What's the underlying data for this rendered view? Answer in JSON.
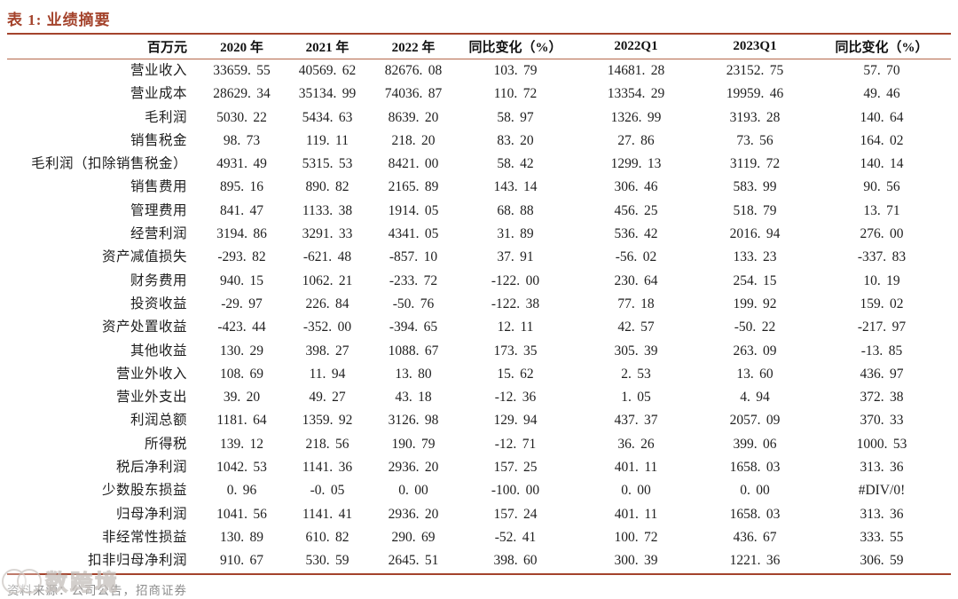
{
  "report": {
    "title": "表 1: 业绩摘要",
    "colors": {
      "accent": "#a4432c",
      "accent_light": "#b5674a",
      "body_text": "#1f1f1f",
      "footer_text": "#8d8d8d",
      "watermark": "#c5bfbb"
    },
    "table": {
      "unit_label": "百万元",
      "columns": [
        "2020 年",
        "2021 年",
        "2022 年",
        "同比变化（%）",
        "2022Q1",
        "2023Q1",
        "同比变化（%）"
      ],
      "rows": [
        {
          "label": "营业收入",
          "values": [
            "33659.55",
            "40569.62",
            "82676.08",
            "103.79",
            "14681.28",
            "23152.75",
            "57.70"
          ]
        },
        {
          "label": "营业成本",
          "values": [
            "28629.34",
            "35134.99",
            "74036.87",
            "110.72",
            "13354.29",
            "19959.46",
            "49.46"
          ]
        },
        {
          "label": "毛利润",
          "values": [
            "5030.22",
            "5434.63",
            "8639.20",
            "58.97",
            "1326.99",
            "3193.28",
            "140.64"
          ]
        },
        {
          "label": "销售税金",
          "values": [
            "98.73",
            "119.11",
            "218.20",
            "83.20",
            "27.86",
            "73.56",
            "164.02"
          ]
        },
        {
          "label": "毛利润（扣除销售税金）",
          "values": [
            "4931.49",
            "5315.53",
            "8421.00",
            "58.42",
            "1299.13",
            "3119.72",
            "140.14"
          ]
        },
        {
          "label": "销售费用",
          "values": [
            "895.16",
            "890.82",
            "2165.89",
            "143.14",
            "306.46",
            "583.99",
            "90.56"
          ]
        },
        {
          "label": "管理费用",
          "values": [
            "841.47",
            "1133.38",
            "1914.05",
            "68.88",
            "456.25",
            "518.79",
            "13.71"
          ]
        },
        {
          "label": "经营利润",
          "values": [
            "3194.86",
            "3291.33",
            "4341.05",
            "31.89",
            "536.42",
            "2016.94",
            "276.00"
          ]
        },
        {
          "label": "资产减值损失",
          "values": [
            "-293.82",
            "-621.48",
            "-857.10",
            "37.91",
            "-56.02",
            "133.23",
            "-337.83"
          ]
        },
        {
          "label": "财务费用",
          "values": [
            "940.15",
            "1062.21",
            "-233.72",
            "-122.00",
            "230.64",
            "254.15",
            "10.19"
          ]
        },
        {
          "label": "投资收益",
          "values": [
            "-29.97",
            "226.84",
            "-50.76",
            "-122.38",
            "77.18",
            "199.92",
            "159.02"
          ]
        },
        {
          "label": "资产处置收益",
          "values": [
            "-423.44",
            "-352.00",
            "-394.65",
            "12.11",
            "42.57",
            "-50.22",
            "-217.97"
          ]
        },
        {
          "label": "其他收益",
          "values": [
            "130.29",
            "398.27",
            "1088.67",
            "173.35",
            "305.39",
            "263.09",
            "-13.85"
          ]
        },
        {
          "label": "营业外收入",
          "values": [
            "108.69",
            "11.94",
            "13.80",
            "15.62",
            "2.53",
            "13.60",
            "436.97"
          ]
        },
        {
          "label": "营业外支出",
          "values": [
            "39.20",
            "49.27",
            "43.18",
            "-12.36",
            "1.05",
            "4.94",
            "372.38"
          ]
        },
        {
          "label": "利润总额",
          "values": [
            "1181.64",
            "1359.92",
            "3126.98",
            "129.94",
            "437.37",
            "2057.09",
            "370.33"
          ]
        },
        {
          "label": "所得税",
          "values": [
            "139.12",
            "218.56",
            "190.79",
            "-12.71",
            "36.26",
            "399.06",
            "1000.53"
          ]
        },
        {
          "label": "税后净利润",
          "values": [
            "1042.53",
            "1141.36",
            "2936.20",
            "157.25",
            "401.11",
            "1658.03",
            "313.36"
          ]
        },
        {
          "label": "少数股东损益",
          "values": [
            "0.96",
            "-0.05",
            "0.00",
            "-100.00",
            "0.00",
            "0.00",
            "#DIV/0!"
          ]
        },
        {
          "label": "归母净利润",
          "values": [
            "1041.56",
            "1141.41",
            "2936.20",
            "157.24",
            "401.11",
            "1658.03",
            "313.36"
          ]
        },
        {
          "label": "非经常性损益",
          "values": [
            "130.89",
            "610.82",
            "290.69",
            "-52.41",
            "100.72",
            "436.67",
            "333.55"
          ]
        },
        {
          "label": "扣非归母净利润",
          "values": [
            "910.67",
            "530.59",
            "2645.51",
            "398.60",
            "300.39",
            "1221.36",
            "306.59"
          ]
        }
      ]
    },
    "footer": {
      "source": "资料来源：公司公告，招商证券"
    },
    "watermark": {
      "logo": "overlapping-circles-logo",
      "text": "数跨境"
    }
  }
}
